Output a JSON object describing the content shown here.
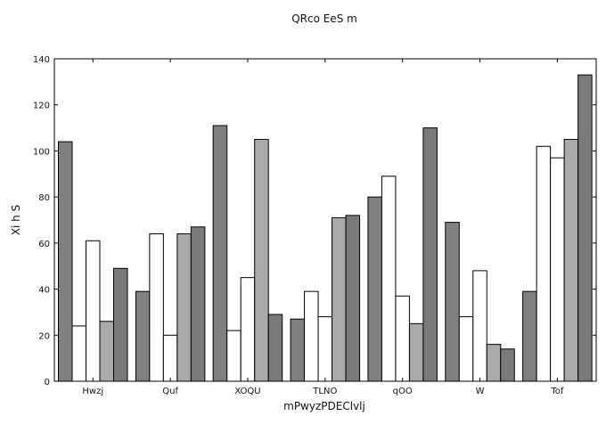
{
  "chart_data": {
    "type": "bar",
    "title": "QRco EeS m",
    "xlabel": "mPwyzPDEClvlj",
    "ylabel": "Xi h  S",
    "ylim": [
      0,
      140
    ],
    "yticks": [
      0,
      20,
      40,
      60,
      80,
      100,
      120,
      140
    ],
    "grid": false,
    "categories": [
      "Hwzj",
      "Quf",
      "XOQU",
      "TLNO",
      "qOO",
      "W",
      "Tof"
    ],
    "series": [
      {
        "color": "#808080",
        "values": [
          104,
          39,
          111,
          27,
          80,
          69,
          39
        ]
      },
      {
        "color": "#ffffff",
        "values": [
          24,
          64,
          22,
          39,
          89,
          28,
          102
        ]
      },
      {
        "color": "#ffffff",
        "values": [
          61,
          20,
          45,
          28,
          37,
          48,
          97
        ]
      },
      {
        "color": "#aaaaaa",
        "values": [
          26,
          64,
          105,
          71,
          25,
          16,
          105
        ]
      },
      {
        "color": "#7a7a7a",
        "values": [
          49,
          67,
          29,
          72,
          110,
          14,
          133
        ]
      }
    ]
  }
}
